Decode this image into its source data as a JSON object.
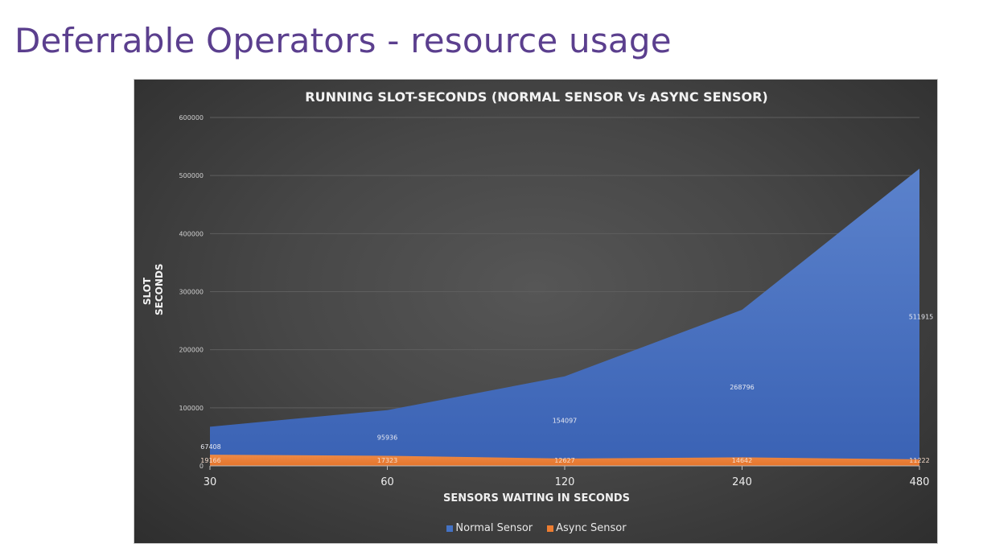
{
  "slide": {
    "title": "Deferrable Operators - resource usage"
  },
  "colors": {
    "title": "#5b3f8e",
    "normal_sensor": "#4472c4",
    "async_sensor": "#ed7d31"
  },
  "chart_data": {
    "type": "area",
    "title": "RUNNING SLOT-SECONDS (NORMAL SENSOR Vs ASYNC SENSOR)",
    "xlabel": "SENSORS WAITING IN SECONDS",
    "ylabel": "SLOT SECONDS",
    "ylabel_lines": [
      "SLOT",
      "SECONDS"
    ],
    "categories": [
      "30",
      "60",
      "120",
      "240",
      "480"
    ],
    "series": [
      {
        "name": "Normal Sensor",
        "color": "#4472c4",
        "values": [
          67408,
          95936,
          154097,
          268796,
          511915
        ]
      },
      {
        "name": "Async Sensor",
        "color": "#ed7d31",
        "values": [
          19166,
          17323,
          12627,
          14642,
          11222
        ]
      }
    ],
    "ylim": [
      0,
      600000
    ],
    "yticks": [
      "0",
      "100000",
      "200000",
      "300000",
      "400000",
      "500000",
      "600000"
    ],
    "grid": true,
    "legend_position": "bottom",
    "data_labels": true
  },
  "legend": {
    "items": [
      {
        "label": "Normal Sensor",
        "color": "#4472c4"
      },
      {
        "label": "Async Sensor",
        "color": "#ed7d31"
      }
    ]
  }
}
